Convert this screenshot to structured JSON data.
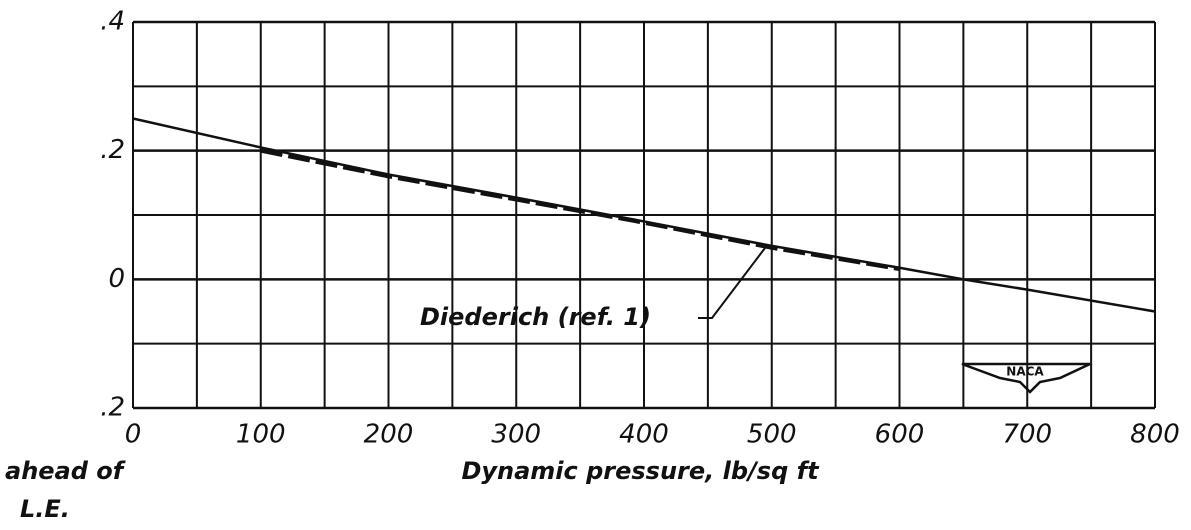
{
  "chart_data": {
    "type": "line",
    "x": [
      0,
      100,
      200,
      300,
      400,
      500,
      600,
      650,
      700,
      800
    ],
    "series": [
      {
        "color": "#111111",
        "values": [
          0.25,
          0.205,
          0.163,
          0.127,
          0.09,
          0.052,
          0.018,
          0,
          -0.016,
          -0.05
        ]
      },
      {
        "name": "Diederich (ref. 1)",
        "color": "#111111",
        "dashed": true,
        "values": [
          null,
          0.2,
          0.16,
          0.124,
          0.088,
          0.049,
          0.016,
          null,
          null,
          null
        ]
      }
    ],
    "xlabel": "Dynamic pressure, lb/sq ft",
    "ylabel_lines": [
      "ahead of",
      "L.E."
    ],
    "logo": "NACA",
    "xlim": [
      0,
      800
    ],
    "xticks": [
      0,
      100,
      200,
      300,
      400,
      500,
      600,
      700,
      800
    ],
    "xminor": [
      50,
      150,
      250,
      350,
      450,
      550,
      650,
      750
    ],
    "ylim": [
      -0.2,
      0.4
    ],
    "yticks": [
      {
        "value": 0.4,
        "label": ".4"
      },
      {
        "value": 0.2,
        "label": ".2"
      },
      0,
      {
        "value": -0.2,
        "label": ".2"
      }
    ],
    "yminor": [
      0.3,
      0.1,
      -0.1
    ],
    "grid": true
  }
}
